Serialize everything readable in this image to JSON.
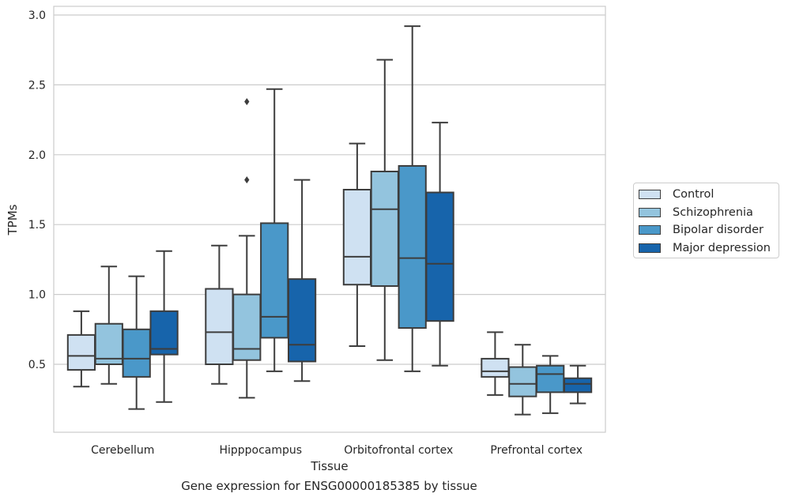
{
  "chart_data": {
    "type": "box",
    "title": "",
    "caption": "Gene expression for ENSG00000185385 by tissue",
    "xlabel": "Tissue",
    "ylabel": "TPMs",
    "ylim": [
      0,
      3.06
    ],
    "yticks": [
      "0.5",
      "1.0",
      "1.5",
      "2.0",
      "2.5",
      "3.0"
    ],
    "grid": "horizontal",
    "legend_position": "right",
    "categories": [
      "Cerebellum",
      "Hipppocampus",
      "Orbitofrontal cortex",
      "Prefrontal cortex"
    ],
    "series": [
      {
        "name": "Control",
        "color": "#cfe1f2",
        "boxes": [
          {
            "min": 0.34,
            "q1": 0.46,
            "median": 0.56,
            "q3": 0.71,
            "max": 0.88,
            "outliers": []
          },
          {
            "min": 0.36,
            "q1": 0.5,
            "median": 0.73,
            "q3": 1.04,
            "max": 1.35,
            "outliers": []
          },
          {
            "min": 0.63,
            "q1": 1.07,
            "median": 1.27,
            "q3": 1.75,
            "max": 2.08,
            "outliers": []
          },
          {
            "min": 0.28,
            "q1": 0.41,
            "median": 0.45,
            "q3": 0.54,
            "max": 0.73,
            "outliers": []
          }
        ]
      },
      {
        "name": "Schizophrenia",
        "color": "#93c4de",
        "boxes": [
          {
            "min": 0.36,
            "q1": 0.5,
            "median": 0.54,
            "q3": 0.79,
            "max": 1.2,
            "outliers": []
          },
          {
            "min": 0.26,
            "q1": 0.53,
            "median": 0.61,
            "q3": 1.0,
            "max": 1.42,
            "outliers": [
              1.82,
              2.38
            ]
          },
          {
            "min": 0.53,
            "q1": 1.06,
            "median": 1.61,
            "q3": 1.88,
            "max": 2.68,
            "outliers": []
          },
          {
            "min": 0.14,
            "q1": 0.27,
            "median": 0.36,
            "q3": 0.48,
            "max": 0.64,
            "outliers": []
          }
        ]
      },
      {
        "name": "Bipolar disorder",
        "color": "#4a98c9",
        "boxes": [
          {
            "min": 0.18,
            "q1": 0.41,
            "median": 0.54,
            "q3": 0.75,
            "max": 1.13,
            "outliers": []
          },
          {
            "min": 0.45,
            "q1": 0.69,
            "median": 0.84,
            "q3": 1.51,
            "max": 2.47,
            "outliers": []
          },
          {
            "min": 0.45,
            "q1": 0.76,
            "median": 1.26,
            "q3": 1.92,
            "max": 2.92,
            "outliers": []
          },
          {
            "min": 0.15,
            "q1": 0.3,
            "median": 0.43,
            "q3": 0.49,
            "max": 0.56,
            "outliers": []
          }
        ]
      },
      {
        "name": "Major depression",
        "color": "#1764ab",
        "boxes": [
          {
            "min": 0.23,
            "q1": 0.57,
            "median": 0.61,
            "q3": 0.88,
            "max": 1.31,
            "outliers": []
          },
          {
            "min": 0.38,
            "q1": 0.52,
            "median": 0.64,
            "q3": 1.11,
            "max": 1.82,
            "outliers": []
          },
          {
            "min": 0.49,
            "q1": 0.81,
            "median": 1.22,
            "q3": 1.73,
            "max": 2.23,
            "outliers": []
          },
          {
            "min": 0.22,
            "q1": 0.3,
            "median": 0.36,
            "q3": 0.4,
            "max": 0.49,
            "outliers": []
          }
        ]
      }
    ]
  }
}
